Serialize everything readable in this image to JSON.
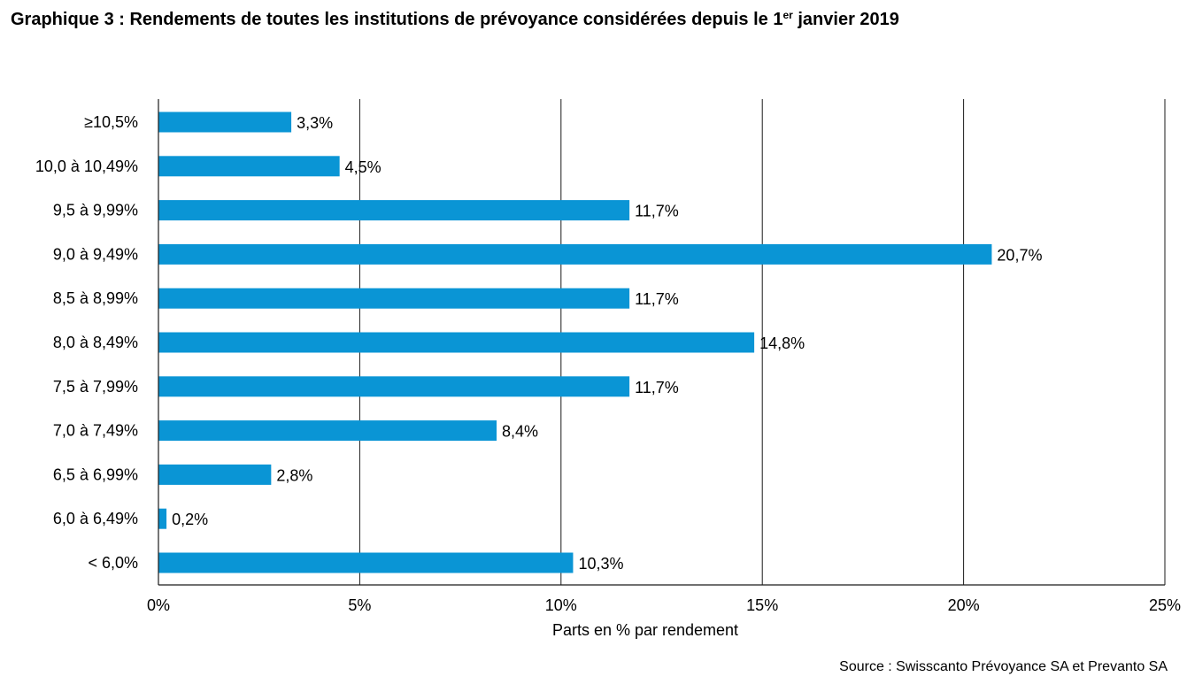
{
  "title": {
    "main": "Graphique 3 : Rendements de toutes les institutions de prévoyance considérées depuis le 1",
    "sup": "er",
    "end": " janvier 2019"
  },
  "source": "Source : Swisscanto Prévoyance SA et Prevanto SA",
  "chart_data": {
    "type": "bar",
    "orientation": "horizontal",
    "title": "Graphique 3 : Rendements de toutes les institutions de prévoyance considérées depuis le 1er janvier 2019",
    "categories": [
      "≥10,5%",
      "10,0 à 10,49%",
      "9,5 à 9,99%",
      "9,0 à 9,49%",
      "8,5 à 8,99%",
      "8,0 à 8,49%",
      "7,5 à 7,99%",
      "7,0 à 7,49%",
      "6,5 à 6,99%",
      "6,0 à 6,49%",
      "< 6,0%"
    ],
    "values": [
      3.3,
      4.5,
      11.7,
      20.7,
      11.7,
      14.8,
      11.7,
      8.4,
      2.8,
      0.2,
      10.3
    ],
    "value_labels": [
      "3,3%",
      "4,5%",
      "11,7%",
      "20,7%",
      "11,7%",
      "14,8%",
      "11,7%",
      "8,4%",
      "2,8%",
      "0,2%",
      "10,3%"
    ],
    "xlabel": "Parts en % par rendement",
    "ylabel": "",
    "xlim": [
      0,
      25
    ],
    "xticks": [
      0,
      5,
      10,
      15,
      20,
      25
    ],
    "xtick_labels": [
      "0%",
      "5%",
      "10%",
      "15%",
      "20%",
      "25%"
    ],
    "grid": "vertical",
    "legend": "none",
    "bar_color": "#0a95d5"
  }
}
